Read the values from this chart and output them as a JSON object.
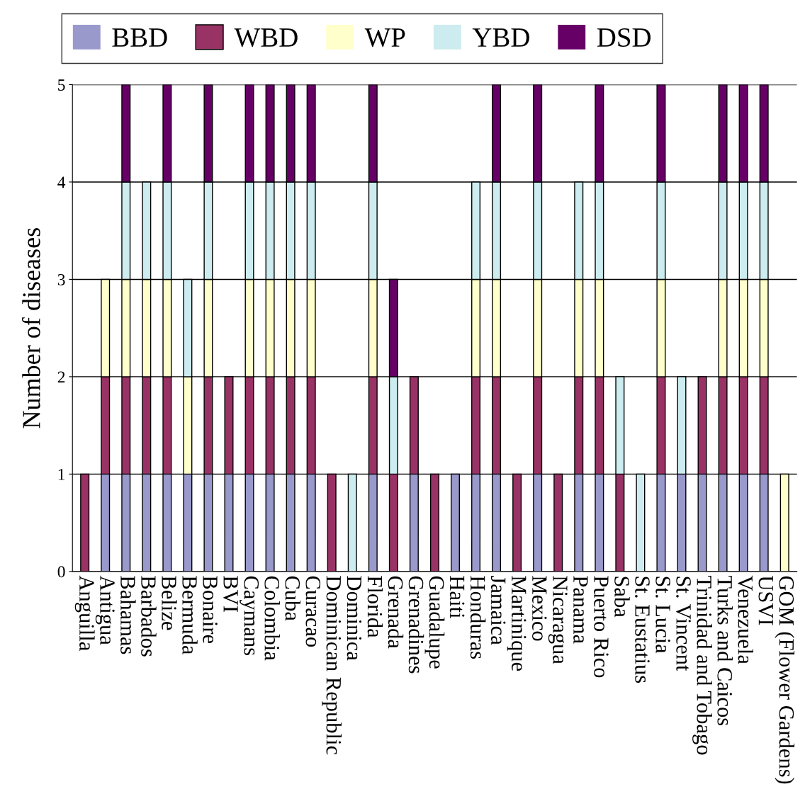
{
  "chart_data": {
    "type": "bar",
    "stacked": true,
    "ylabel": "Number of diseases",
    "categories": [
      "Anguilla",
      "Antigua",
      "Bahamas",
      "Barbados",
      "Belize",
      "Bermuda",
      "Bonaire",
      "BVI",
      "Caymans",
      "Colombia",
      "Cuba",
      "Curacao",
      "Dominican Republic",
      "Dominica",
      "Florida",
      "Grenada",
      "Grenadines",
      "Guadalupe",
      "Haiti",
      "Honduras",
      "Jamaica",
      "Martinique",
      "Mexico",
      "Nicaragua",
      "Panama",
      "Puerto Rico",
      "Saba",
      "St. Eustatius",
      "St. Lucia",
      "St. Vincent",
      "Trinidad and Tobago",
      "Turks and Caicos",
      "Venezuela",
      "USVI",
      "GOM (Flower Gardens)"
    ],
    "series": [
      {
        "name": "BBD",
        "color": "#9999cc",
        "values": [
          0,
          1,
          1,
          1,
          1,
          1,
          1,
          1,
          1,
          1,
          1,
          1,
          0,
          0,
          1,
          0,
          1,
          0,
          1,
          1,
          1,
          0,
          1,
          0,
          1,
          1,
          0,
          0,
          1,
          1,
          1,
          1,
          1,
          1,
          0
        ]
      },
      {
        "name": "WBD",
        "color": "#993366",
        "values": [
          1,
          1,
          1,
          1,
          1,
          0,
          1,
          1,
          1,
          1,
          1,
          1,
          1,
          0,
          1,
          1,
          1,
          1,
          0,
          1,
          1,
          1,
          1,
          1,
          1,
          1,
          1,
          0,
          1,
          0,
          1,
          1,
          1,
          1,
          0
        ]
      },
      {
        "name": "WP",
        "color": "#ffffcc",
        "values": [
          0,
          1,
          1,
          1,
          1,
          1,
          1,
          0,
          1,
          1,
          1,
          1,
          0,
          0,
          1,
          0,
          0,
          0,
          0,
          1,
          1,
          0,
          1,
          0,
          1,
          1,
          0,
          0,
          1,
          0,
          0,
          1,
          1,
          1,
          1
        ]
      },
      {
        "name": "YBD",
        "color": "#ccecf0",
        "values": [
          0,
          0,
          1,
          1,
          1,
          1,
          1,
          0,
          1,
          1,
          1,
          1,
          0,
          1,
          1,
          1,
          0,
          0,
          0,
          1,
          1,
          0,
          1,
          0,
          1,
          1,
          1,
          1,
          1,
          1,
          0,
          1,
          1,
          1,
          0
        ]
      },
      {
        "name": "DSD",
        "color": "#660066",
        "values": [
          0,
          0,
          1,
          0,
          1,
          0,
          1,
          0,
          1,
          1,
          1,
          1,
          0,
          0,
          1,
          1,
          0,
          0,
          0,
          0,
          1,
          0,
          1,
          0,
          0,
          1,
          0,
          0,
          1,
          0,
          0,
          1,
          1,
          1,
          0
        ]
      }
    ],
    "ylim": [
      0,
      5
    ],
    "yticks": [
      0,
      1,
      2,
      3,
      4,
      5
    ],
    "grid": "y",
    "legend": "top"
  }
}
